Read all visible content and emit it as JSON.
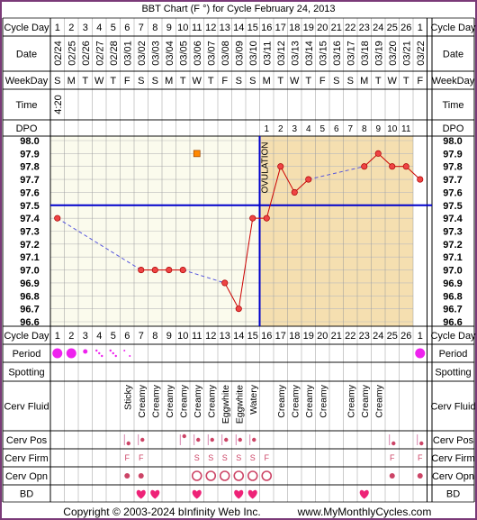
{
  "title": "BBT Chart (F °) for Cycle February 24, 2013",
  "footer": {
    "copyright": "Copyright © 2003-2024 bInfinity Web Inc.",
    "site": "www.MyMonthlyCycles.com"
  },
  "row_labels": {
    "cycle_day": "Cycle Day",
    "date": "Date",
    "weekday": "WeekDay",
    "time": "Time",
    "dpo": "DPO",
    "period": "Period",
    "spotting": "Spotting",
    "cerv_fluid": "Cerv Fluid",
    "cerv_pos": "Cerv Pos",
    "cerv_firm": "Cerv Firm",
    "cerv_opn": "Cerv Opn",
    "bd": "BD"
  },
  "ovulation_label": "OVULATION",
  "colors": {
    "border": "#7a3a78",
    "luteal_bg": "#f5dfb0",
    "follicular_bg": "#fbfbed",
    "grid": "#bbbbbb",
    "temp_line": "#cc0000",
    "temp_point": "#ee4444",
    "coverline": "#0000cc",
    "ovulation_line": "#0000cc",
    "period_dot": "#ee22ee",
    "bd_heart": "#ee2277",
    "circle": "#cc4466",
    "deleted_marker": "#ff8800"
  },
  "chart_data": {
    "type": "line",
    "cycle_days": [
      1,
      2,
      3,
      4,
      5,
      6,
      7,
      8,
      9,
      10,
      11,
      12,
      13,
      14,
      15,
      16,
      17,
      18,
      19,
      20,
      21,
      22,
      23,
      24,
      25,
      26,
      1
    ],
    "dates": [
      "02/24",
      "02/25",
      "02/26",
      "02/27",
      "02/28",
      "03/01",
      "03/02",
      "03/03",
      "03/04",
      "03/05",
      "03/06",
      "03/07",
      "03/08",
      "03/09",
      "03/10",
      "03/11",
      "03/12",
      "03/13",
      "03/14",
      "03/15",
      "03/16",
      "03/17",
      "03/18",
      "03/19",
      "03/20",
      "03/21",
      "03/22"
    ],
    "weekdays": [
      "S",
      "M",
      "T",
      "W",
      "T",
      "F",
      "S",
      "S",
      "M",
      "T",
      "W",
      "T",
      "F",
      "S",
      "S",
      "M",
      "T",
      "W",
      "T",
      "F",
      "S",
      "S",
      "M",
      "T",
      "W",
      "T",
      "F"
    ],
    "times": [
      "4:20",
      "",
      "",
      "",
      "",
      "",
      "",
      "",
      "",
      "",
      "",
      "",
      "",
      "",
      "",
      "",
      "",
      "",
      "",
      "",
      "",
      "",
      "",
      "",
      "",
      "",
      ""
    ],
    "dpo": [
      "",
      "",
      "",
      "",
      "",
      "",
      "",
      "",
      "",
      "",
      "",
      "",
      "",
      "",
      "",
      "1",
      "2",
      "3",
      "4",
      "5",
      "6",
      "7",
      "8",
      "9",
      "10",
      "11",
      ""
    ],
    "y_ticks": [
      "98.0",
      "97.9",
      "97.8",
      "97.7",
      "97.6",
      "97.5",
      "97.4",
      "97.3",
      "97.2",
      "97.1",
      "97.0",
      "96.9",
      "96.8",
      "96.7",
      "96.6"
    ],
    "ylim": [
      96.6,
      98.0
    ],
    "temperatures": [
      97.4,
      null,
      null,
      null,
      null,
      null,
      97.0,
      97.0,
      97.0,
      97.0,
      null,
      null,
      96.9,
      96.7,
      97.4,
      97.4,
      97.8,
      97.6,
      97.7,
      null,
      null,
      null,
      97.8,
      97.9,
      97.8,
      97.8,
      97.7
    ],
    "deleted_temperature": {
      "day_index": 10,
      "value": 97.9
    },
    "coverline": 97.5,
    "ovulation_day_index": 14,
    "period": [
      "heavy",
      "heavy",
      "medium",
      "light",
      "light",
      "spotting",
      "",
      "",
      "",
      "",
      "",
      "",
      "",
      "",
      "",
      "",
      "",
      "",
      "",
      "",
      "",
      "",
      "",
      "",
      "",
      "",
      "heavy"
    ],
    "cerv_fluid": [
      "",
      "",
      "",
      "",
      "",
      "Sticky",
      "Creamy",
      "Creamy",
      "Creamy",
      "Creamy",
      "Creamy",
      "Creamy",
      "Eggwhite",
      "Eggwhite",
      "Watery",
      "",
      "Creamy",
      "Creamy",
      "Creamy",
      "Creamy",
      "",
      "Creamy",
      "Creamy",
      "Creamy",
      "",
      "",
      ""
    ],
    "cerv_pos": [
      "",
      "",
      "",
      "",
      "",
      "low",
      "medium",
      "",
      "",
      "high",
      "medium",
      "medium",
      "medium",
      "medium",
      "medium",
      "",
      "",
      "",
      "",
      "",
      "",
      "",
      "",
      "",
      "low",
      "",
      "low"
    ],
    "cerv_firm": [
      "",
      "",
      "",
      "",
      "",
      "F",
      "F",
      "",
      "",
      "",
      "S",
      "S",
      "S",
      "S",
      "S",
      "F",
      "",
      "",
      "",
      "",
      "",
      "",
      "",
      "",
      "F",
      "",
      "F"
    ],
    "cerv_opn": [
      "",
      "",
      "",
      "",
      "",
      "closed",
      "closed",
      "",
      "",
      "",
      "open",
      "open",
      "open",
      "open",
      "open",
      "open",
      "",
      "",
      "",
      "",
      "",
      "",
      "",
      "",
      "closed",
      "",
      "closed"
    ],
    "bd": [
      false,
      false,
      false,
      false,
      false,
      false,
      true,
      true,
      false,
      false,
      true,
      false,
      false,
      true,
      true,
      false,
      false,
      false,
      false,
      false,
      false,
      false,
      true,
      false,
      false,
      false,
      false
    ]
  }
}
